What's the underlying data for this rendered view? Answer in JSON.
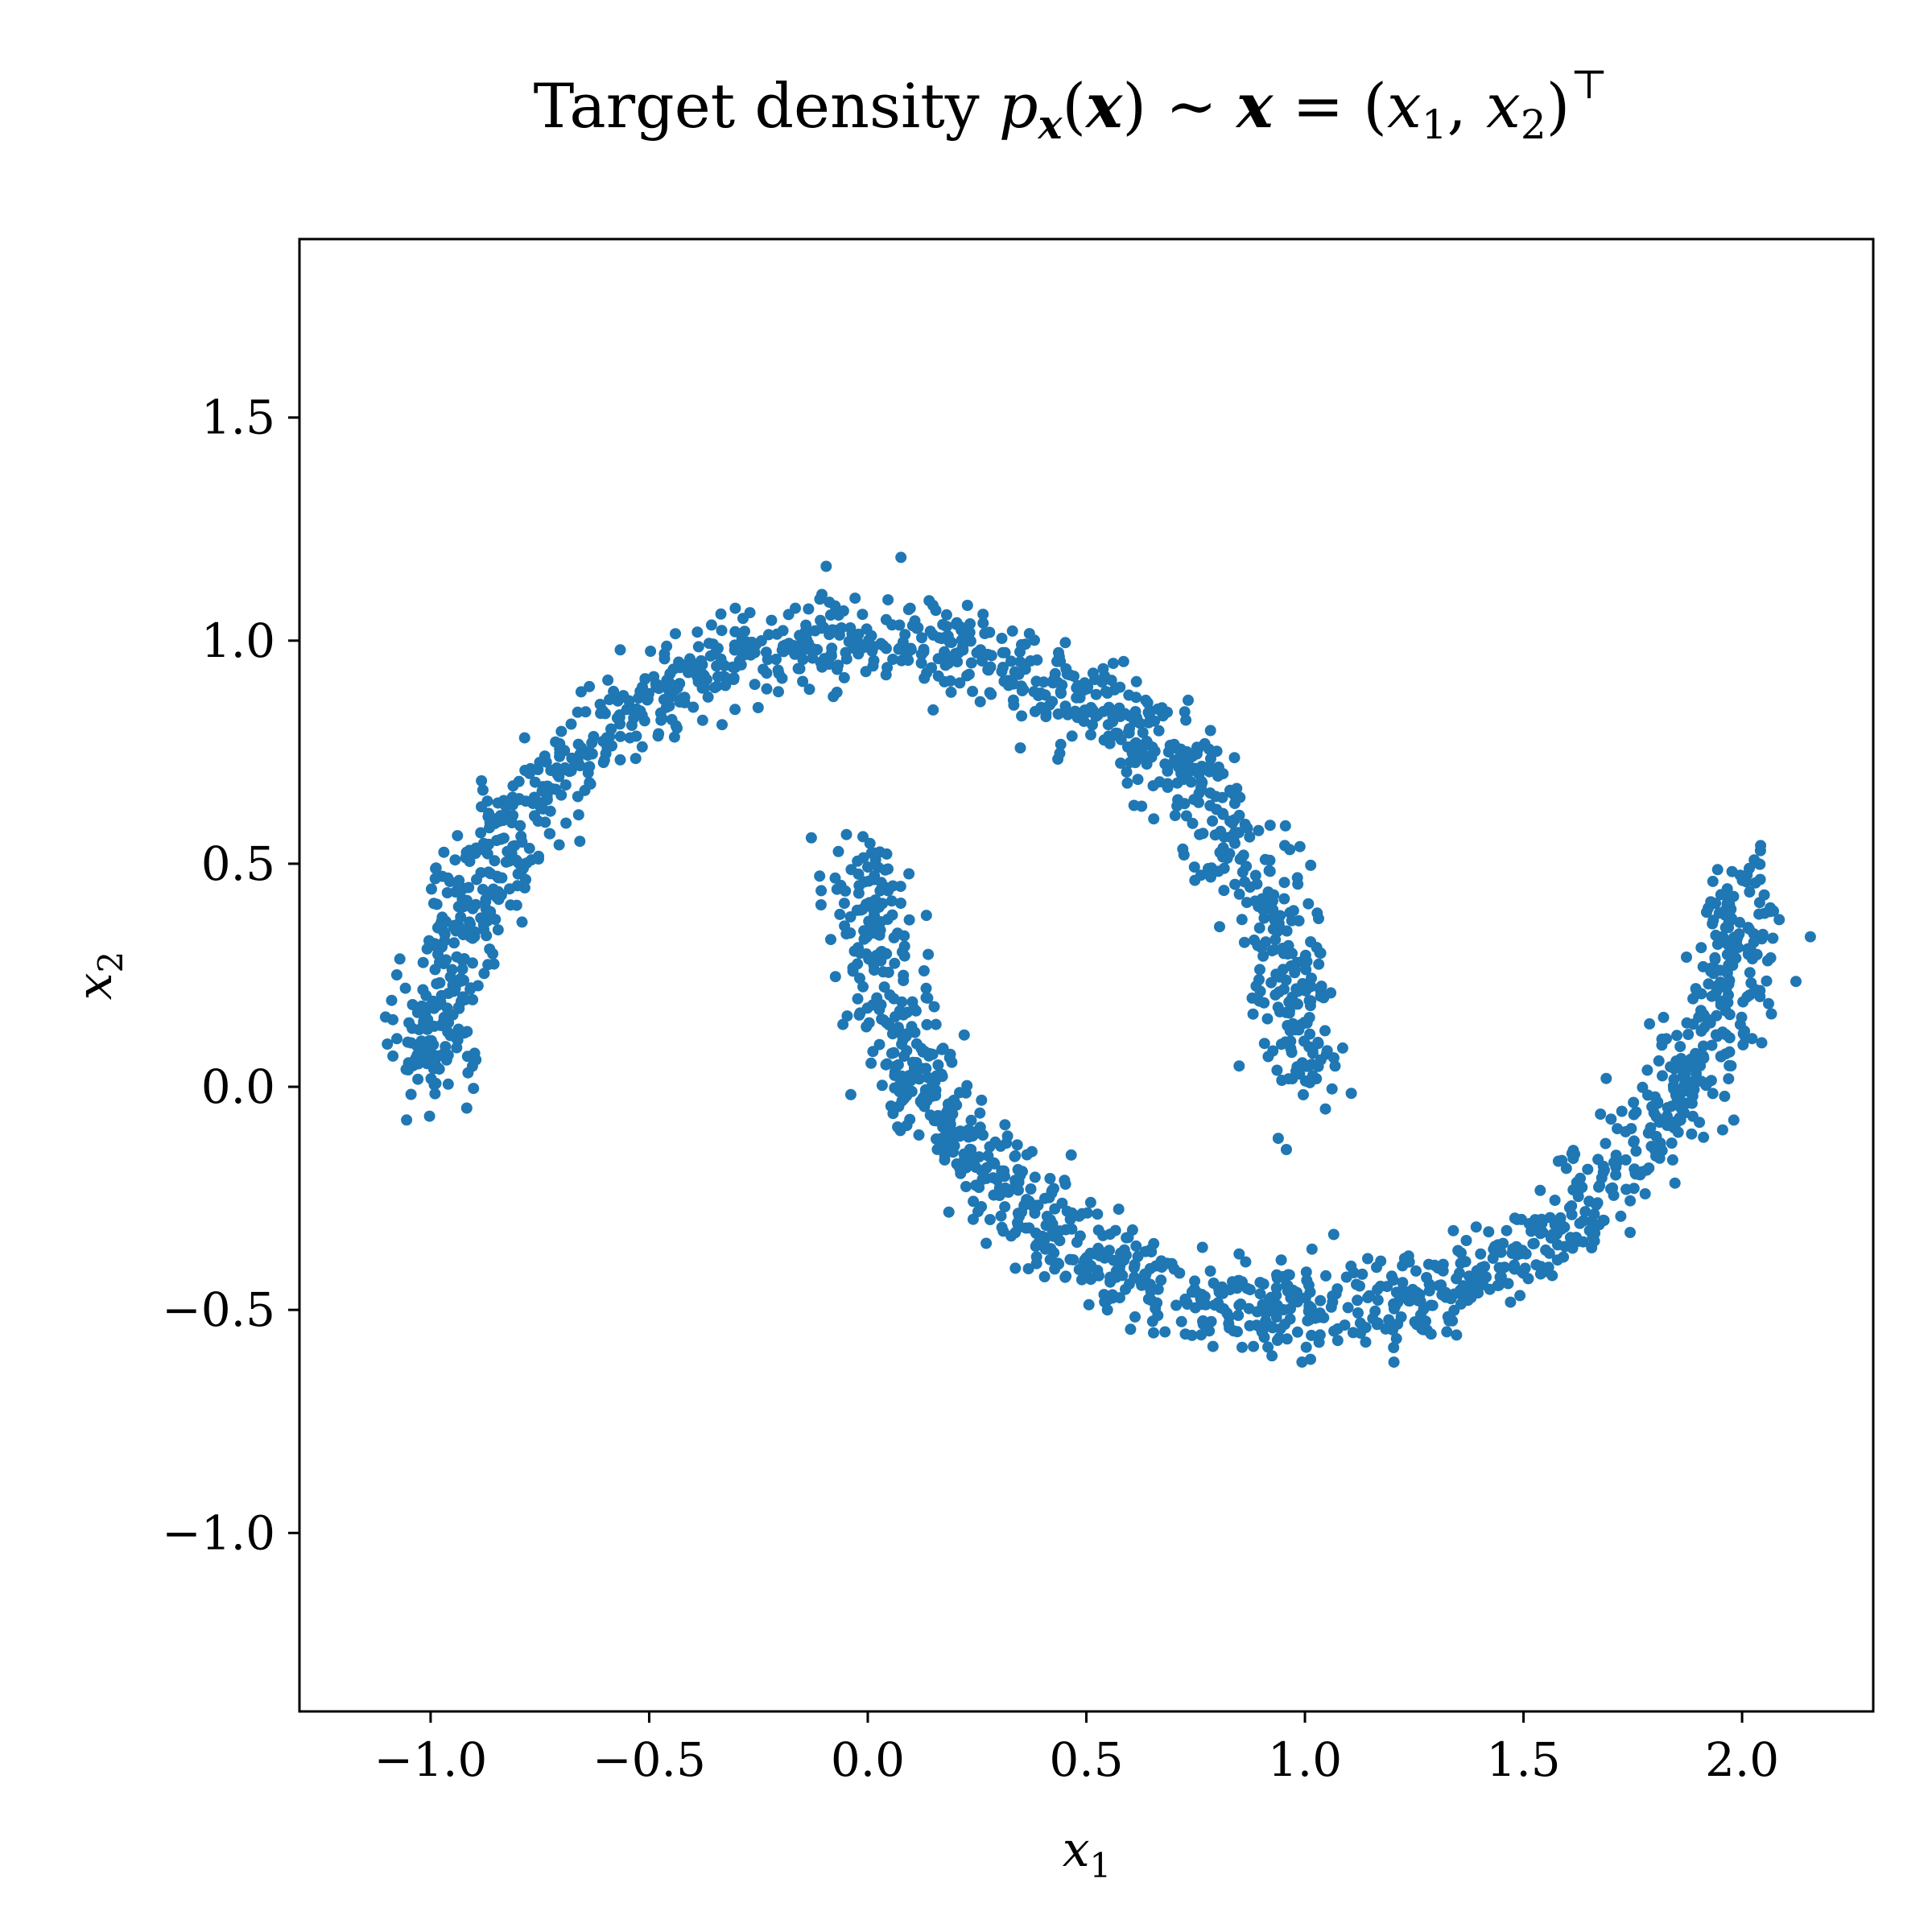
{
  "chart_data": {
    "type": "scatter",
    "title": "Target density p_x(x) ~ x = (x_1, x_2)^T",
    "title_parts": {
      "prefix": "Target density ",
      "p": "p",
      "p_sub": "x",
      "open_paren": "(",
      "x_bold": "x",
      "close_paren": ")",
      "sim": " ∼ ",
      "x_bold2": "x",
      "equals": " = (",
      "x1": "x",
      "x1_sub": "1",
      "comma": ", ",
      "x2": "x",
      "x2_sub": "2",
      "close2": ")",
      "transpose": "⊤"
    },
    "xlabel": {
      "base": "x",
      "sub": "1"
    },
    "ylabel": {
      "base": "x",
      "sub": "2"
    },
    "xlim": [
      -1.3,
      2.3
    ],
    "ylim": [
      -1.4,
      1.9
    ],
    "xticks": [
      {
        "value": -1.0,
        "label": "−1.0"
      },
      {
        "value": -0.5,
        "label": "−0.5"
      },
      {
        "value": 0.0,
        "label": "0.0"
      },
      {
        "value": 0.5,
        "label": "0.5"
      },
      {
        "value": 1.0,
        "label": "1.0"
      },
      {
        "value": 1.5,
        "label": "1.5"
      },
      {
        "value": 2.0,
        "label": "2.0"
      }
    ],
    "yticks": [
      {
        "value": -1.0,
        "label": "−1.0"
      },
      {
        "value": -0.5,
        "label": "−0.5"
      },
      {
        "value": 0.0,
        "label": "0.0"
      },
      {
        "value": 0.5,
        "label": "0.5"
      },
      {
        "value": 1.0,
        "label": "1.0"
      },
      {
        "value": 1.5,
        "label": "1.5"
      }
    ],
    "grid": false,
    "marker_color": "#1f77b4",
    "series": [
      {
        "name": "",
        "generator": "two-moons",
        "n_points_per_moon": 1200,
        "noise_std": 0.05,
        "upper_moon": {
          "center": [
            0.0,
            0.0
          ],
          "radius": 1.0,
          "angle_range_deg": [
            0,
            180
          ]
        },
        "lower_moon": {
          "center": [
            1.0,
            0.5
          ],
          "radius": 1.0,
          "angle_range_deg": [
            180,
            360
          ]
        }
      }
    ]
  }
}
